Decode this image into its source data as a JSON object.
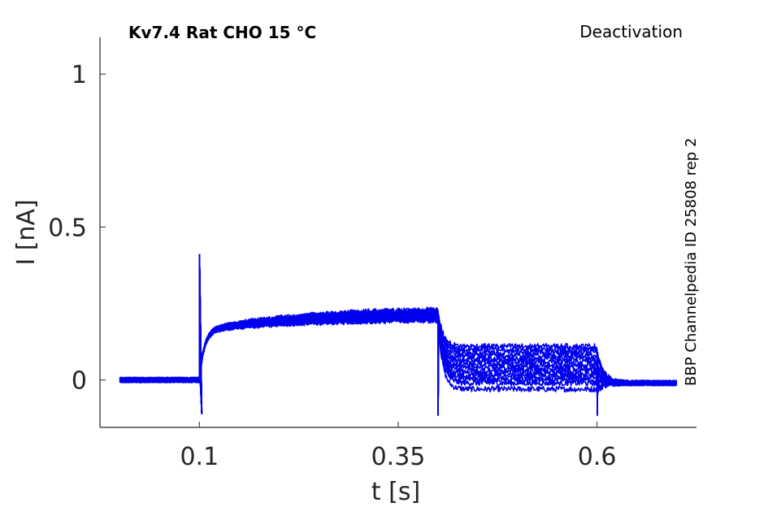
{
  "chart_data": {
    "type": "line",
    "title": "Kv7.4  Rat  CHO  15 °C",
    "protocol_label": "Deactivation",
    "source_label": "BBP Channelpedia ID 25808 rep 2",
    "xlabel": "t [s]",
    "ylabel": "I [nA]",
    "xlim": [
      -0.025,
      0.725
    ],
    "ylim": [
      -0.155,
      1.12
    ],
    "xticks": [
      0.1,
      0.35,
      0.6
    ],
    "xtick_labels": [
      "0.1",
      "0.35",
      "0.6"
    ],
    "yticks": [
      0,
      0.5,
      1
    ],
    "ytick_labels": [
      "0",
      "0.5",
      "1"
    ],
    "grid": false,
    "line_color": "#0000ee",
    "protocol": {
      "t_start": 0.0,
      "t_step1": 0.1,
      "t_step2": 0.4,
      "t_step3": 0.6,
      "t_end": 0.7,
      "baseline": 0.0,
      "plateau_start": 0.16,
      "plateau_end_min": 0.195,
      "plateau_end_max": 0.23,
      "spike_peak": 0.41,
      "spike_trough": -0.11,
      "spike_step2_trough": -0.115,
      "spike_step3_trough": -0.115
    },
    "series": [
      {
        "tail_level": -0.03
      },
      {
        "tail_level": -0.01
      },
      {
        "tail_level": 0.0
      },
      {
        "tail_level": 0.01
      },
      {
        "tail_level": 0.02
      },
      {
        "tail_level": 0.03
      },
      {
        "tail_level": 0.04
      },
      {
        "tail_level": 0.05
      },
      {
        "tail_level": 0.06
      },
      {
        "tail_level": 0.07
      },
      {
        "tail_level": 0.08
      },
      {
        "tail_level": 0.09
      },
      {
        "tail_level": 0.1
      },
      {
        "tail_level": 0.11
      }
    ]
  }
}
